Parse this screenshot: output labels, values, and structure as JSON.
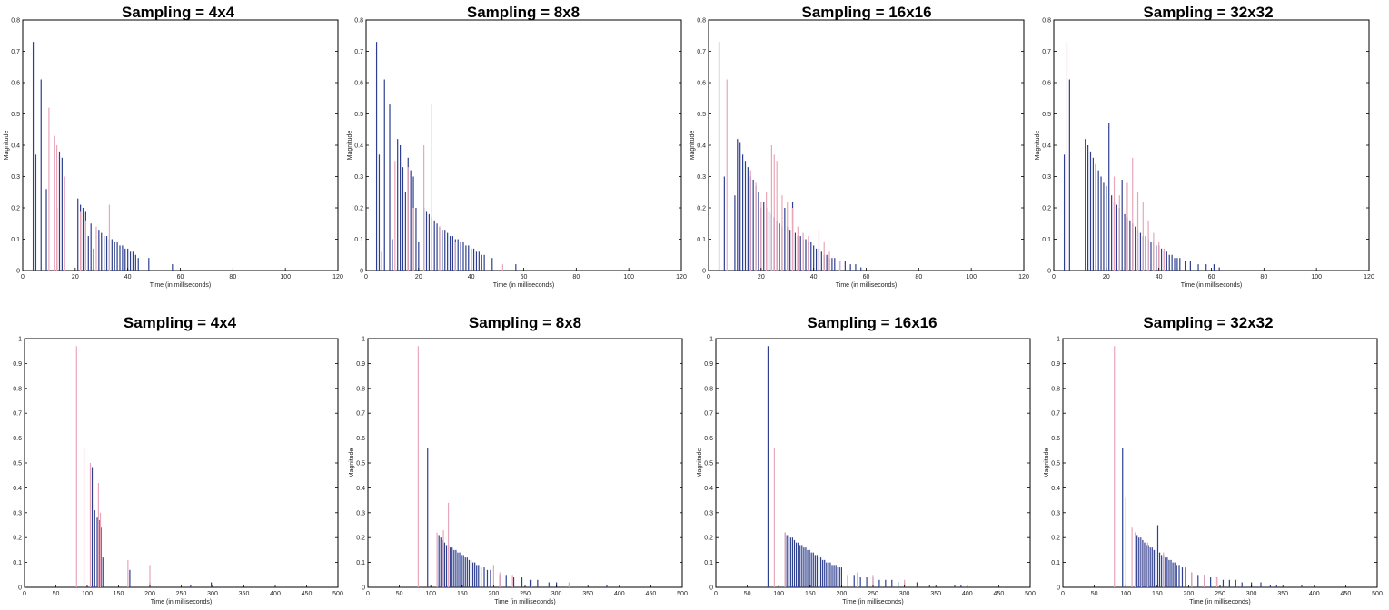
{
  "colors": {
    "series_a": "#2e3f8f",
    "series_b": "#e8a6b9",
    "frame": "#000000"
  },
  "chart_data": [
    {
      "type": "bar",
      "title": "Sampling = 4x4",
      "xlabel": "Time (in milliseconds)",
      "ylabel": "Magnitude",
      "xlim": [
        0,
        120
      ],
      "ylim": [
        0,
        0.8
      ],
      "xticks": [
        "0",
        "20",
        "40",
        "60",
        "80",
        "100",
        "120"
      ],
      "yticks": [
        "0",
        "0.1",
        "0.2",
        "0.3",
        "0.4",
        "0.5",
        "0.6",
        "0.7",
        "0.8"
      ],
      "series": [
        {
          "x": [
            4,
            5,
            7,
            9,
            13,
            14,
            15,
            21,
            22,
            23,
            24,
            25,
            26,
            27,
            29,
            30,
            31,
            32,
            33,
            34,
            35,
            36,
            37,
            38,
            39,
            40,
            41,
            42,
            43,
            44,
            48,
            57
          ],
          "values": [
            0.73,
            0.37,
            0.61,
            0.26,
            0.2,
            0.38,
            0.36,
            0.23,
            0.21,
            0.2,
            0.19,
            0.11,
            0.15,
            0.07,
            0.13,
            0.12,
            0.11,
            0.11,
            0.1,
            0.1,
            0.09,
            0.09,
            0.08,
            0.08,
            0.07,
            0.07,
            0.06,
            0.06,
            0.05,
            0.04,
            0.04,
            0.02
          ]
        },
        {
          "x": [
            10,
            12,
            13,
            16,
            22,
            24,
            28,
            33
          ],
          "values": [
            0.52,
            0.43,
            0.4,
            0.3,
            0.19,
            0.16,
            0.14,
            0.21
          ]
        }
      ]
    },
    {
      "type": "bar",
      "title": "Sampling = 8x8",
      "xlabel": "Time (in milliseconds)",
      "ylabel": "Magnitude",
      "xlim": [
        0,
        120
      ],
      "ylim": [
        0,
        0.8
      ],
      "xticks": [
        "0",
        "20",
        "40",
        "60",
        "80",
        "100",
        "120"
      ],
      "yticks": [
        "0",
        "0.1",
        "0.2",
        "0.3",
        "0.4",
        "0.5",
        "0.6",
        "0.7",
        "0.8"
      ],
      "series": [
        {
          "x": [
            4,
            5,
            6,
            7,
            9,
            10,
            12,
            13,
            14,
            15,
            16,
            17,
            18,
            19,
            20,
            22,
            23,
            24,
            25,
            26,
            27,
            28,
            29,
            30,
            31,
            32,
            33,
            34,
            35,
            36,
            37,
            38,
            39,
            40,
            41,
            42,
            43,
            44,
            45,
            48,
            57
          ],
          "values": [
            0.73,
            0.37,
            0.06,
            0.61,
            0.53,
            0.1,
            0.42,
            0.4,
            0.33,
            0.25,
            0.36,
            0.32,
            0.3,
            0.2,
            0.09,
            0.2,
            0.19,
            0.18,
            0.17,
            0.16,
            0.15,
            0.14,
            0.13,
            0.13,
            0.12,
            0.11,
            0.11,
            0.1,
            0.1,
            0.09,
            0.09,
            0.08,
            0.08,
            0.07,
            0.07,
            0.06,
            0.06,
            0.05,
            0.05,
            0.04,
            0.02
          ]
        },
        {
          "x": [
            11,
            16,
            18,
            22,
            25,
            28,
            34,
            52
          ],
          "values": [
            0.35,
            0.33,
            0.2,
            0.4,
            0.53,
            0.14,
            0.09,
            0.02
          ]
        }
      ]
    },
    {
      "type": "bar",
      "title": "Sampling = 16x16",
      "xlabel": "Time (in milliseconds)",
      "ylabel": "Magnitude",
      "xlim": [
        0,
        120
      ],
      "ylim": [
        0,
        0.8
      ],
      "xticks": [
        "0",
        "20",
        "40",
        "60",
        "80",
        "100",
        "120"
      ],
      "yticks": [
        "0",
        "0.1",
        "0.2",
        "0.3",
        "0.4",
        "0.5",
        "0.6",
        "0.7",
        "0.8"
      ],
      "series": [
        {
          "x": [
            4,
            6,
            10,
            11,
            12,
            13,
            14,
            15,
            16,
            17,
            18,
            19,
            20,
            21,
            22,
            23,
            24,
            25,
            26,
            27,
            28,
            29,
            30,
            31,
            32,
            33,
            34,
            35,
            36,
            37,
            38,
            39,
            40,
            41,
            42,
            43,
            44,
            45,
            46,
            47,
            48,
            50,
            52,
            54,
            56,
            58
          ],
          "values": [
            0.73,
            0.3,
            0.24,
            0.42,
            0.41,
            0.37,
            0.35,
            0.33,
            0.3,
            0.29,
            0.27,
            0.25,
            0.2,
            0.22,
            0.2,
            0.19,
            0.18,
            0.17,
            0.16,
            0.15,
            0.14,
            0.2,
            0.14,
            0.13,
            0.22,
            0.12,
            0.11,
            0.11,
            0.1,
            0.1,
            0.09,
            0.09,
            0.08,
            0.07,
            0.07,
            0.06,
            0.05,
            0.05,
            0.04,
            0.04,
            0.04,
            0.03,
            0.03,
            0.02,
            0.02,
            0.01
          ]
        },
        {
          "x": [
            7,
            16,
            18,
            20,
            22,
            24,
            25,
            26,
            28,
            30,
            32,
            34,
            36,
            38,
            42,
            44,
            46,
            50
          ],
          "values": [
            0.61,
            0.32,
            0.28,
            0.22,
            0.25,
            0.4,
            0.37,
            0.35,
            0.24,
            0.22,
            0.2,
            0.14,
            0.12,
            0.11,
            0.13,
            0.09,
            0.06,
            0.03
          ]
        }
      ]
    },
    {
      "type": "bar",
      "title": "Sampling = 32x32",
      "xlabel": "Time (in milliseconds)",
      "ylabel": "Magnitude",
      "xlim": [
        0,
        120
      ],
      "ylim": [
        0,
        0.8
      ],
      "xticks": [
        "0",
        "20",
        "40",
        "60",
        "80",
        "100",
        "120"
      ],
      "yticks": [
        "0",
        "0.1",
        "0.2",
        "0.3",
        "0.4",
        "0.5",
        "0.6",
        "0.7",
        "0.8"
      ],
      "series": [
        {
          "x": [
            4,
            6,
            12,
            13,
            14,
            15,
            16,
            17,
            18,
            19,
            20,
            21,
            22,
            23,
            24,
            25,
            26,
            27,
            28,
            29,
            30,
            31,
            32,
            33,
            34,
            35,
            36,
            37,
            38,
            39,
            40,
            41,
            42,
            43,
            44,
            45,
            46,
            47,
            48,
            50,
            52,
            55,
            58,
            61,
            63
          ],
          "values": [
            0.37,
            0.61,
            0.42,
            0.4,
            0.38,
            0.36,
            0.34,
            0.32,
            0.3,
            0.28,
            0.27,
            0.47,
            0.24,
            0.22,
            0.21,
            0.2,
            0.29,
            0.18,
            0.17,
            0.16,
            0.15,
            0.14,
            0.13,
            0.12,
            0.11,
            0.11,
            0.1,
            0.09,
            0.09,
            0.08,
            0.08,
            0.07,
            0.06,
            0.06,
            0.05,
            0.05,
            0.04,
            0.04,
            0.04,
            0.03,
            0.03,
            0.02,
            0.02,
            0.02,
            0.01
          ]
        },
        {
          "x": [
            5,
            23,
            25,
            28,
            30,
            32,
            34,
            36,
            38,
            40,
            42
          ],
          "values": [
            0.73,
            0.3,
            0.24,
            0.28,
            0.36,
            0.25,
            0.22,
            0.16,
            0.12,
            0.09,
            0.07
          ]
        }
      ]
    },
    {
      "type": "bar",
      "title": "Sampling = 4x4",
      "xlabel": "Time (in milliseconds)",
      "ylabel": "",
      "xlim": [
        0,
        500
      ],
      "ylim": [
        0,
        1
      ],
      "xticks": [
        "0",
        "50",
        "100",
        "150",
        "200",
        "250",
        "300",
        "350",
        "400",
        "450",
        "500"
      ],
      "yticks": [
        "0",
        "0.1",
        "0.2",
        "0.3",
        "0.4",
        "0.5",
        "0.6",
        "0.7",
        "0.8",
        "0.9",
        "1"
      ],
      "series": [
        {
          "x": [
            108,
            112,
            116,
            120,
            122,
            125,
            168,
            200,
            265,
            298
          ],
          "values": [
            0.48,
            0.31,
            0.28,
            0.27,
            0.24,
            0.12,
            0.07,
            0.02,
            0.01,
            0.02
          ]
        },
        {
          "x": [
            83,
            95,
            105,
            118,
            121,
            165,
            200
          ],
          "values": [
            0.97,
            0.56,
            0.5,
            0.42,
            0.3,
            0.11,
            0.09
          ]
        }
      ]
    },
    {
      "type": "bar",
      "title": "Sampling = 8x8",
      "xlabel": "Time (in milliseconds)",
      "ylabel": "Magnitude",
      "xlim": [
        0,
        500
      ],
      "ylim": [
        0,
        1
      ],
      "xticks": [
        "0",
        "50",
        "100",
        "150",
        "200",
        "250",
        "300",
        "350",
        "400",
        "450",
        "500"
      ],
      "yticks": [
        "0",
        "0.1",
        "0.2",
        "0.3",
        "0.4",
        "0.5",
        "0.6",
        "0.7",
        "0.8",
        "0.9",
        "1"
      ],
      "series": [
        {
          "x": [
            95,
            113,
            116,
            118,
            122,
            125,
            128,
            131,
            134,
            137,
            140,
            143,
            146,
            149,
            152,
            155,
            158,
            161,
            164,
            167,
            170,
            173,
            176,
            180,
            185,
            190,
            195,
            210,
            220,
            232,
            245,
            258,
            270,
            288,
            300,
            320,
            380
          ],
          "values": [
            0.56,
            0.21,
            0.2,
            0.19,
            0.18,
            0.17,
            0.17,
            0.16,
            0.16,
            0.15,
            0.15,
            0.14,
            0.14,
            0.13,
            0.13,
            0.12,
            0.12,
            0.11,
            0.11,
            0.1,
            0.1,
            0.09,
            0.09,
            0.08,
            0.08,
            0.07,
            0.07,
            0.05,
            0.05,
            0.04,
            0.04,
            0.03,
            0.03,
            0.02,
            0.02,
            0.01,
            0.01
          ]
        },
        {
          "x": [
            80,
            110,
            120,
            128,
            200,
            210,
            230,
            260,
            320
          ],
          "values": [
            0.97,
            0.22,
            0.23,
            0.34,
            0.09,
            0.06,
            0.05,
            0.03,
            0.02
          ]
        }
      ]
    },
    {
      "type": "bar",
      "title": "Sampling = 16x16",
      "xlabel": "Time (in milliseconds)",
      "ylabel": "Magnitude",
      "xlim": [
        0,
        500
      ],
      "ylim": [
        0,
        1
      ],
      "xticks": [
        "0",
        "50",
        "100",
        "150",
        "200",
        "250",
        "300",
        "350",
        "400",
        "450",
        "500"
      ],
      "yticks": [
        "0",
        "0.1",
        "0.2",
        "0.3",
        "0.4",
        "0.5",
        "0.6",
        "0.7",
        "0.8",
        "0.9",
        "1"
      ],
      "series": [
        {
          "x": [
            83,
            110,
            113,
            116,
            119,
            122,
            125,
            128,
            131,
            134,
            137,
            140,
            143,
            146,
            149,
            152,
            155,
            158,
            161,
            164,
            167,
            170,
            173,
            176,
            179,
            182,
            185,
            188,
            191,
            194,
            197,
            200,
            210,
            220,
            230,
            240,
            250,
            260,
            270,
            280,
            290,
            300,
            320,
            340,
            380,
            390
          ],
          "values": [
            0.97,
            0.22,
            0.21,
            0.21,
            0.2,
            0.2,
            0.19,
            0.18,
            0.18,
            0.17,
            0.17,
            0.16,
            0.16,
            0.15,
            0.15,
            0.14,
            0.14,
            0.13,
            0.13,
            0.12,
            0.12,
            0.11,
            0.11,
            0.1,
            0.1,
            0.1,
            0.09,
            0.09,
            0.09,
            0.08,
            0.08,
            0.08,
            0.05,
            0.05,
            0.04,
            0.04,
            0.04,
            0.03,
            0.03,
            0.03,
            0.02,
            0.02,
            0.02,
            0.01,
            0.01,
            0.01
          ]
        },
        {
          "x": [
            93,
            110,
            225,
            250,
            300
          ],
          "values": [
            0.56,
            0.22,
            0.06,
            0.05,
            0.03
          ]
        }
      ]
    },
    {
      "type": "bar",
      "title": "Sampling = 32x32",
      "xlabel": "Time (in milliseconds)",
      "ylabel": "Magnitude",
      "xlim": [
        0,
        500
      ],
      "ylim": [
        0,
        1
      ],
      "xticks": [
        "0",
        "50",
        "100",
        "150",
        "200",
        "250",
        "300",
        "350",
        "400",
        "450",
        "500"
      ],
      "yticks": [
        "0",
        "0.1",
        "0.2",
        "0.3",
        "0.4",
        "0.5",
        "0.6",
        "0.7",
        "0.8",
        "0.9",
        "1"
      ],
      "series": [
        {
          "x": [
            95,
            115,
            118,
            121,
            124,
            127,
            130,
            133,
            136,
            139,
            142,
            145,
            148,
            151,
            154,
            157,
            160,
            163,
            166,
            169,
            172,
            175,
            178,
            181,
            185,
            190,
            195,
            205,
            215,
            225,
            235,
            245,
            255,
            265,
            275,
            285,
            300,
            315,
            330,
            340,
            380
          ],
          "values": [
            0.56,
            0.22,
            0.21,
            0.2,
            0.2,
            0.19,
            0.18,
            0.17,
            0.17,
            0.16,
            0.16,
            0.15,
            0.15,
            0.25,
            0.14,
            0.13,
            0.13,
            0.12,
            0.12,
            0.11,
            0.11,
            0.1,
            0.1,
            0.09,
            0.09,
            0.08,
            0.08,
            0.06,
            0.05,
            0.05,
            0.04,
            0.04,
            0.03,
            0.03,
            0.03,
            0.02,
            0.02,
            0.02,
            0.01,
            0.01,
            0.01
          ]
        },
        {
          "x": [
            82,
            100,
            110,
            115,
            125,
            135,
            160,
            205,
            225,
            245
          ],
          "values": [
            0.97,
            0.36,
            0.24,
            0.22,
            0.2,
            0.18,
            0.14,
            0.06,
            0.05,
            0.04
          ]
        }
      ]
    }
  ]
}
